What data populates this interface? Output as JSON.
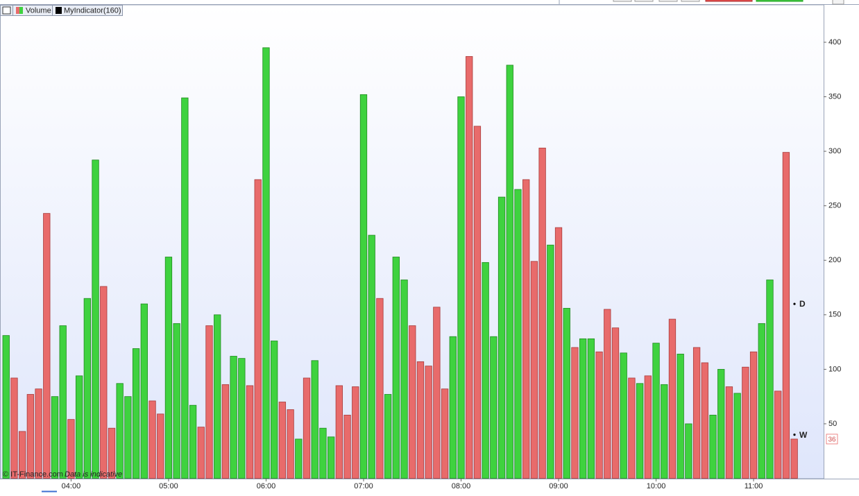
{
  "chart_data": {
    "type": "bar",
    "categories": [
      null,
      null,
      null,
      null,
      null,
      null,
      null,
      null,
      "04:00",
      null,
      null,
      null,
      null,
      null,
      null,
      null,
      null,
      null,
      null,
      null,
      "05:00",
      null,
      null,
      null,
      null,
      null,
      null,
      null,
      null,
      null,
      null,
      null,
      "06:00",
      null,
      null,
      null,
      null,
      null,
      null,
      null,
      null,
      null,
      null,
      null,
      "07:00",
      null,
      null,
      null,
      null,
      null,
      null,
      null,
      null,
      null,
      null,
      null,
      "08:00",
      null,
      null,
      null,
      null,
      null,
      null,
      null,
      null,
      null,
      null,
      null,
      "09:00",
      null,
      null,
      null,
      null,
      null,
      null,
      null,
      null,
      null,
      null,
      null,
      "10:00",
      null,
      null,
      null,
      null,
      null,
      null,
      null,
      null,
      null,
      null,
      null,
      "11:00",
      null,
      null,
      null,
      null,
      null
    ],
    "series": [
      {
        "name": "Volume",
        "values": [
          131,
          92,
          43,
          77,
          82,
          243,
          75,
          140,
          54,
          94,
          165,
          292,
          176,
          46,
          87,
          75,
          119,
          160,
          71,
          59,
          203,
          142,
          349,
          67,
          47,
          140,
          150,
          86,
          112,
          110,
          85,
          274,
          395,
          126,
          70,
          63,
          36,
          92,
          108,
          46,
          38,
          85,
          58,
          84,
          352,
          223,
          165,
          77,
          203,
          182,
          140,
          107,
          103,
          157,
          82,
          130,
          350,
          387,
          323,
          198,
          130,
          258,
          379,
          265,
          274,
          199,
          303,
          214,
          230,
          156,
          120,
          128,
          128,
          116,
          155,
          138,
          115,
          92,
          87,
          94,
          124,
          86,
          146,
          114,
          50,
          120,
          106,
          58,
          100,
          84,
          78,
          102,
          116,
          142,
          182,
          80,
          299,
          36
        ],
        "colors": [
          "g",
          "r",
          "r",
          "r",
          "r",
          "r",
          "g",
          "g",
          "r",
          "g",
          "g",
          "g",
          "r",
          "r",
          "g",
          "g",
          "g",
          "g",
          "r",
          "r",
          "g",
          "g",
          "g",
          "g",
          "r",
          "r",
          "g",
          "r",
          "g",
          "g",
          "r",
          "r",
          "g",
          "g",
          "r",
          "r",
          "g",
          "r",
          "g",
          "g",
          "g",
          "r",
          "r",
          "r",
          "g",
          "g",
          "r",
          "g",
          "g",
          "g",
          "r",
          "r",
          "r",
          "r",
          "r",
          "g",
          "g",
          "r",
          "r",
          "g",
          "g",
          "g",
          "g",
          "g",
          "r",
          "r",
          "r",
          "g",
          "r",
          "g",
          "r",
          "g",
          "g",
          "r",
          "r",
          "r",
          "g",
          "r",
          "g",
          "r",
          "g",
          "g",
          "r",
          "g",
          "g",
          "r",
          "r",
          "g",
          "g",
          "r",
          "g",
          "r",
          "r",
          "g",
          "g",
          "r",
          "r",
          "r"
        ]
      }
    ],
    "palette": {
      "g": "#3fd23f",
      "r": "#e86b6b"
    },
    "indicators": [
      {
        "name": "MyIndicator(160)",
        "color": "#000000"
      }
    ],
    "ylim": [
      0,
      434
    ],
    "yticks": [
      50,
      100,
      150,
      200,
      250,
      300,
      350,
      400
    ],
    "annotations": [
      {
        "text": "D",
        "value": 160
      },
      {
        "text": "W",
        "value": 40
      }
    ],
    "copyright": "© IT-Finance.com",
    "note": "Data is indicative"
  }
}
